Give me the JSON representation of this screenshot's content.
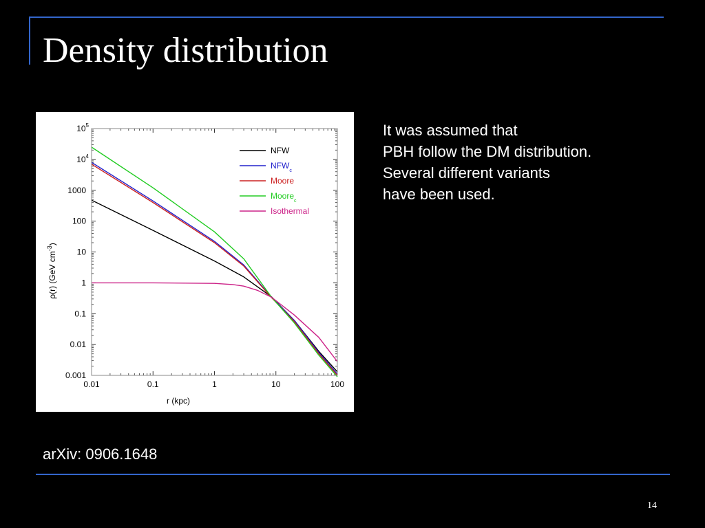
{
  "slide": {
    "title": "Density distribution",
    "body_lines": [
      "It was assumed that",
      "PBH follow the DM distribution.",
      "Several different variants",
      "have been used."
    ],
    "reference": "arXiv: 0906.1648",
    "page_number": "14",
    "accent_color": "#3366cc",
    "background_color": "#000000"
  },
  "chart_data": {
    "type": "line",
    "xlabel": "r (kpc)",
    "ylabel": "ρ(r) (GeV cm",
    "ylabel_superscript": "-3",
    "ylabel_close": ")",
    "x_scale": "log",
    "y_scale": "log",
    "xlim": [
      0.01,
      100
    ],
    "ylim": [
      0.001,
      100000
    ],
    "x_ticks": [
      {
        "value": 0.01,
        "label": "0.01"
      },
      {
        "value": 0.1,
        "label": "0.1"
      },
      {
        "value": 1,
        "label": "1"
      },
      {
        "value": 10,
        "label": "10"
      },
      {
        "value": 100,
        "label": "100"
      }
    ],
    "y_ticks": [
      {
        "value": 100000,
        "base": "10",
        "exp": "5"
      },
      {
        "value": 10000,
        "base": "10",
        "exp": "4"
      },
      {
        "value": 1000,
        "base": "1000",
        "exp": ""
      },
      {
        "value": 100,
        "base": "100",
        "exp": ""
      },
      {
        "value": 10,
        "base": "10",
        "exp": ""
      },
      {
        "value": 1,
        "base": "1",
        "exp": ""
      },
      {
        "value": 0.1,
        "base": "0.1",
        "exp": ""
      },
      {
        "value": 0.01,
        "base": "0.01",
        "exp": ""
      },
      {
        "value": 0.001,
        "base": "0.001",
        "exp": ""
      }
    ],
    "legend_position": "top-right",
    "grid": false,
    "series": [
      {
        "name": "NFW",
        "subscript": "",
        "color": "#000000",
        "x": [
          0.01,
          0.1,
          1,
          3,
          8.5,
          20,
          50,
          100
        ],
        "y": [
          480,
          50,
          5.1,
          1.55,
          0.35,
          0.06,
          0.006,
          0.0013
        ]
      },
      {
        "name": "NFW",
        "subscript": "c",
        "color": "#2222cc",
        "x": [
          0.01,
          0.1,
          1,
          3,
          8.5,
          20,
          50,
          100
        ],
        "y": [
          8000,
          450,
          22,
          3.8,
          0.34,
          0.06,
          0.0055,
          0.0011
        ]
      },
      {
        "name": "Moore",
        "subscript": "",
        "color": "#cc2222",
        "x": [
          0.01,
          0.1,
          1,
          3,
          8.5,
          20,
          50,
          100
        ],
        "y": [
          7000,
          400,
          20,
          3.5,
          0.33,
          0.055,
          0.005,
          0.001
        ]
      },
      {
        "name": "Moore",
        "subscript": "c",
        "color": "#22cc22",
        "x": [
          0.01,
          0.1,
          1,
          3,
          8.5,
          20,
          50,
          100
        ],
        "y": [
          25000,
          1200,
          45,
          6,
          0.34,
          0.05,
          0.0045,
          0.0009
        ]
      },
      {
        "name": "Isothermal",
        "subscript": "",
        "color": "#cc2288",
        "x": [
          0.01,
          0.1,
          1,
          2,
          3,
          5,
          8.5,
          20,
          50,
          100
        ],
        "y": [
          1.0,
          0.998,
          0.96,
          0.88,
          0.78,
          0.57,
          0.34,
          0.09,
          0.017,
          0.0028
        ]
      }
    ]
  }
}
